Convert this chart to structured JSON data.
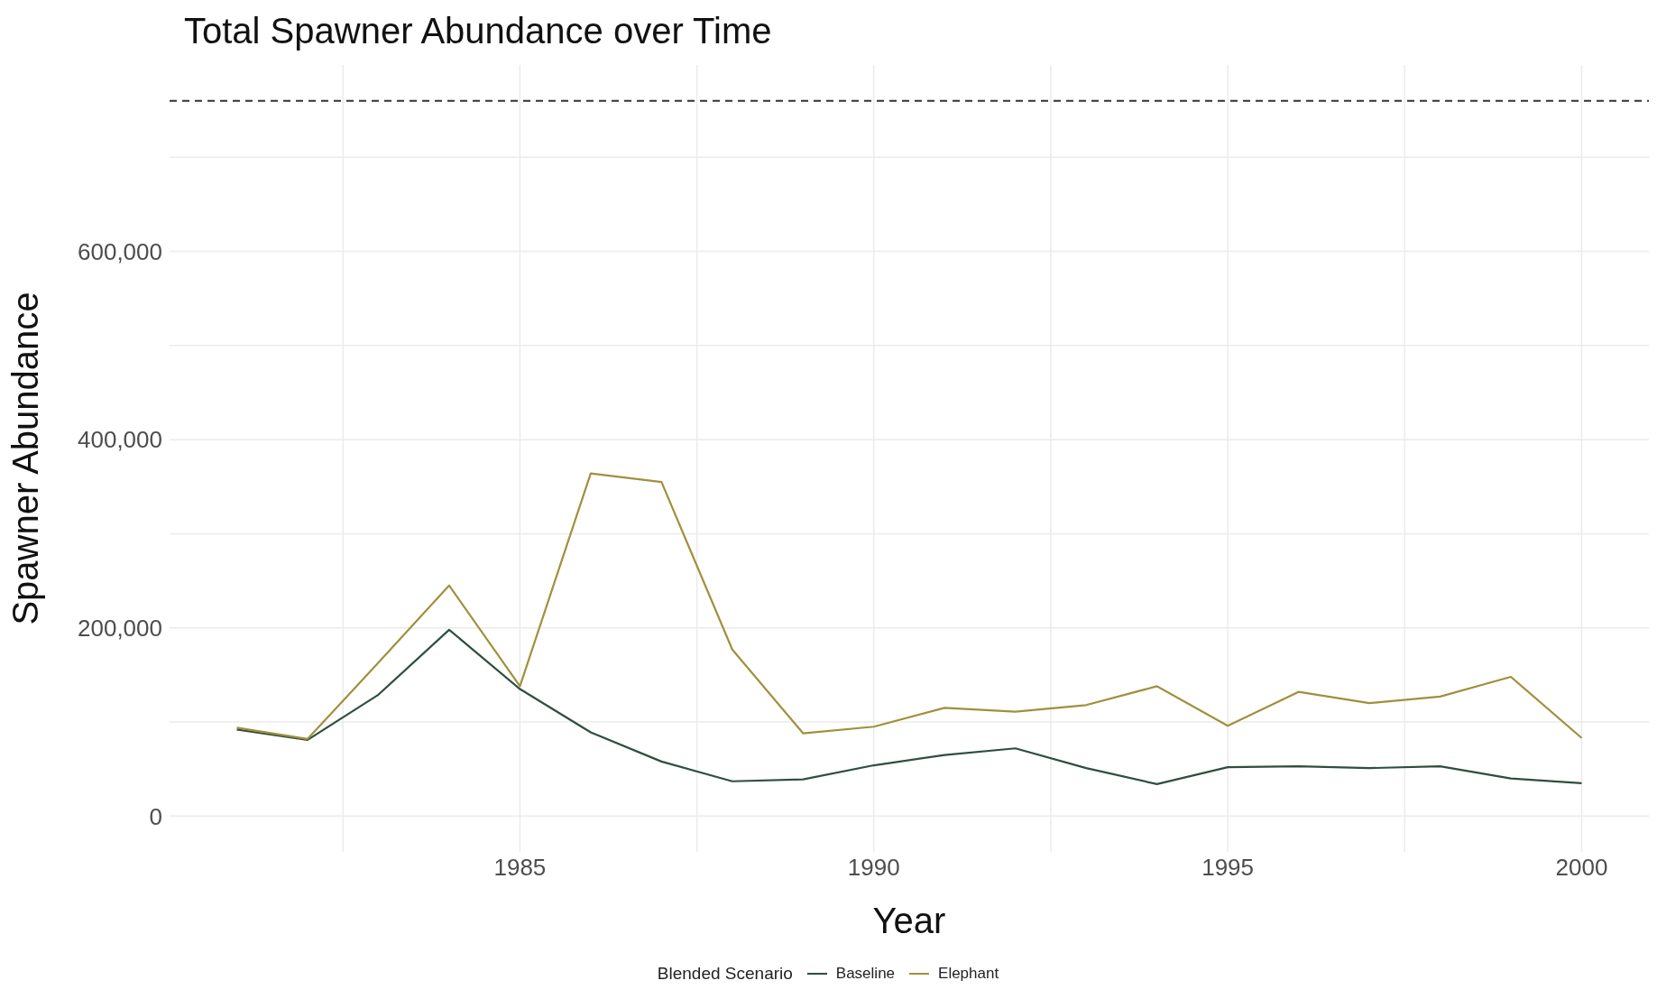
{
  "chart_data": {
    "type": "line",
    "title": "Total Spawner Abundance over Time",
    "xlabel": "Year",
    "ylabel": "Spawner Abundance",
    "legend_title": "Blended Scenario",
    "legend": "bottom",
    "grid": true,
    "line_style": "solid",
    "marker": "none",
    "x": [
      1981,
      1982,
      1983,
      1984,
      1985,
      1986,
      1987,
      1988,
      1989,
      1990,
      1991,
      1992,
      1993,
      1994,
      1995,
      1996,
      1997,
      1998,
      1999,
      2000
    ],
    "series": [
      {
        "name": "Baseline",
        "color": "#2e4f3e",
        "values": [
          92000,
          81000,
          129000,
          198000,
          135000,
          89000,
          58000,
          37000,
          39000,
          54000,
          65000,
          72000,
          51000,
          34000,
          52000,
          53000,
          51000,
          53000,
          40000,
          35000
        ]
      },
      {
        "name": "Elephant",
        "color": "#a0903c",
        "values": [
          94000,
          82000,
          163000,
          245000,
          138000,
          364000,
          355000,
          177000,
          88000,
          95000,
          115000,
          111000,
          118000,
          138000,
          96000,
          132000,
          120000,
          127000,
          148000,
          83000
        ]
      }
    ],
    "xlim": [
      1980.05,
      2000.95
    ],
    "xticks": [
      {
        "value": 1982.5,
        "label": null
      },
      1985,
      {
        "value": 1987.5,
        "label": null
      },
      1990,
      {
        "value": 1992.5,
        "label": null
      },
      1995,
      {
        "value": 1997.5,
        "label": null
      },
      2000
    ],
    "ylim": [
      -38000,
      798000
    ],
    "yticks": [
      0,
      {
        "value": 100000,
        "label": null
      },
      {
        "value": 200000,
        "label": "200,000"
      },
      {
        "value": 300000,
        "label": null
      },
      {
        "value": 400000,
        "label": "400,000"
      },
      {
        "value": 500000,
        "label": null
      },
      {
        "value": 600000,
        "label": "600,000"
      },
      {
        "value": 700000,
        "label": null
      }
    ],
    "ref_lines": [
      {
        "axis": "y",
        "value": 760000,
        "color": "#333333",
        "line_style": "dashed"
      }
    ]
  }
}
